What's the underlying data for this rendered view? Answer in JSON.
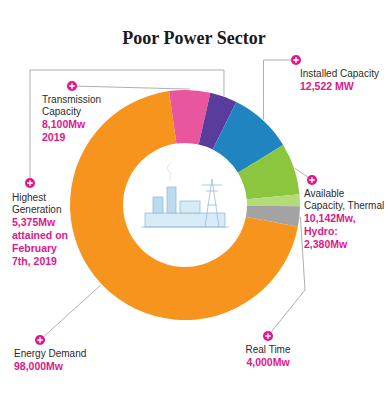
{
  "chart_data": {
    "type": "donut",
    "title": "Poor Power Sector",
    "categories": [
      "Transmission Capacity",
      "Highest Generation",
      "Installed Capacity",
      "Available Capacity, Thermal",
      "Hydro:",
      "Real Time",
      "Energy Demand"
    ],
    "values": [
      8100,
      5375,
      12522,
      10142,
      2380,
      4000,
      98000
    ],
    "value_labels": [
      "8,100Mw",
      "5,375Mw",
      "12,522 MW",
      "10,142Mw,",
      "2,380Mw",
      "4,000Mw",
      "98,000Mw"
    ],
    "colors": [
      "#e9559f",
      "#5a3c9c",
      "#1f84bf",
      "#8cc63f",
      "#b3db78",
      "#a3a3a3",
      "#f7941d"
    ],
    "annotations": [
      {
        "text": "2019",
        "category": "Transmission Capacity"
      },
      {
        "text": "attained on February 7th, 2019",
        "category": "Highest Generation"
      }
    ]
  }
}
